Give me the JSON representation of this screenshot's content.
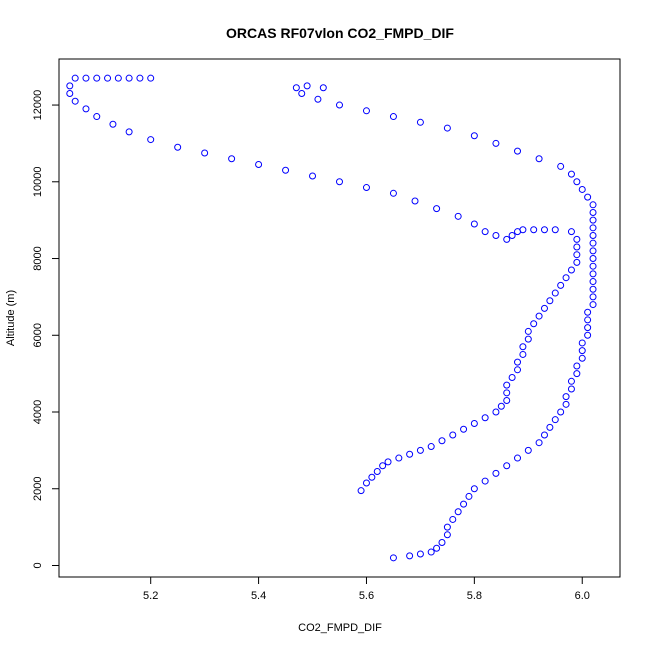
{
  "chart_data": {
    "type": "scatter",
    "title": "ORCAS RF07vlon CO2_FMPD_DIF",
    "xlabel": "CO2_FMPD_DIF",
    "ylabel": "Altitude (m)",
    "xlim": [
      5.03,
      6.07
    ],
    "ylim": [
      -300,
      13200
    ],
    "x_ticks": [
      5.2,
      5.4,
      5.6,
      5.8,
      6.0
    ],
    "x_tick_labels": [
      "5.2",
      "5.4",
      "5.6",
      "5.8",
      "6.0"
    ],
    "y_ticks": [
      0,
      2000,
      4000,
      6000,
      8000,
      10000,
      12000
    ],
    "y_tick_labels": [
      "0",
      "2000",
      "4000",
      "6000",
      "8000",
      "10000",
      "12000"
    ],
    "grid": false,
    "marker": "open-circle",
    "series_color": "#0000ff",
    "series": [
      {
        "name": "",
        "points": [
          [
            5.59,
            1950
          ],
          [
            5.6,
            2150
          ],
          [
            5.61,
            2300
          ],
          [
            5.62,
            2450
          ],
          [
            5.63,
            2600
          ],
          [
            5.64,
            2700
          ],
          [
            5.66,
            2800
          ],
          [
            5.68,
            2900
          ],
          [
            5.7,
            3000
          ],
          [
            5.72,
            3100
          ],
          [
            5.74,
            3250
          ],
          [
            5.76,
            3400
          ],
          [
            5.78,
            3550
          ],
          [
            5.8,
            3700
          ],
          [
            5.82,
            3850
          ],
          [
            5.84,
            4000
          ],
          [
            5.85,
            4150
          ],
          [
            5.86,
            4300
          ],
          [
            5.86,
            4500
          ],
          [
            5.86,
            4700
          ],
          [
            5.87,
            4900
          ],
          [
            5.88,
            5100
          ],
          [
            5.88,
            5300
          ],
          [
            5.89,
            5500
          ],
          [
            5.89,
            5700
          ],
          [
            5.9,
            5900
          ],
          [
            5.9,
            6100
          ],
          [
            5.91,
            6300
          ],
          [
            5.92,
            6500
          ],
          [
            5.93,
            6700
          ],
          [
            5.94,
            6900
          ],
          [
            5.95,
            7100
          ],
          [
            5.96,
            7300
          ],
          [
            5.97,
            7500
          ],
          [
            5.98,
            7700
          ],
          [
            5.99,
            7900
          ],
          [
            5.99,
            8100
          ],
          [
            5.99,
            8300
          ],
          [
            5.99,
            8500
          ],
          [
            5.98,
            8700
          ],
          [
            5.95,
            8750
          ],
          [
            5.93,
            8750
          ],
          [
            5.91,
            8750
          ],
          [
            5.89,
            8750
          ],
          [
            5.88,
            8700
          ],
          [
            5.87,
            8600
          ],
          [
            5.86,
            8500
          ],
          [
            5.84,
            8600
          ],
          [
            5.82,
            8700
          ],
          [
            5.8,
            8900
          ],
          [
            5.77,
            9100
          ],
          [
            5.73,
            9300
          ],
          [
            5.69,
            9500
          ],
          [
            5.65,
            9700
          ],
          [
            5.6,
            9850
          ],
          [
            5.55,
            10000
          ],
          [
            5.5,
            10150
          ],
          [
            5.45,
            10300
          ],
          [
            5.4,
            10450
          ],
          [
            5.35,
            10600
          ],
          [
            5.3,
            10750
          ],
          [
            5.25,
            10900
          ],
          [
            5.2,
            11100
          ],
          [
            5.16,
            11300
          ],
          [
            5.13,
            11500
          ],
          [
            5.1,
            11700
          ],
          [
            5.08,
            11900
          ],
          [
            5.06,
            12100
          ],
          [
            5.05,
            12300
          ],
          [
            5.05,
            12500
          ],
          [
            5.06,
            12700
          ],
          [
            5.08,
            12700
          ],
          [
            5.1,
            12700
          ],
          [
            5.12,
            12700
          ],
          [
            5.14,
            12700
          ],
          [
            5.16,
            12700
          ],
          [
            5.18,
            12700
          ],
          [
            5.2,
            12700
          ]
        ]
      },
      {
        "name": "",
        "points": [
          [
            5.65,
            200
          ],
          [
            5.68,
            250
          ],
          [
            5.7,
            300
          ],
          [
            5.72,
            350
          ],
          [
            5.73,
            450
          ],
          [
            5.74,
            600
          ],
          [
            5.75,
            800
          ],
          [
            5.75,
            1000
          ],
          [
            5.76,
            1200
          ],
          [
            5.77,
            1400
          ],
          [
            5.78,
            1600
          ],
          [
            5.79,
            1800
          ],
          [
            5.8,
            2000
          ],
          [
            5.82,
            2200
          ],
          [
            5.84,
            2400
          ],
          [
            5.86,
            2600
          ],
          [
            5.88,
            2800
          ],
          [
            5.9,
            3000
          ],
          [
            5.92,
            3200
          ],
          [
            5.93,
            3400
          ],
          [
            5.94,
            3600
          ],
          [
            5.95,
            3800
          ],
          [
            5.96,
            4000
          ],
          [
            5.97,
            4200
          ],
          [
            5.97,
            4400
          ],
          [
            5.98,
            4600
          ],
          [
            5.98,
            4800
          ],
          [
            5.99,
            5000
          ],
          [
            5.99,
            5200
          ],
          [
            6.0,
            5400
          ],
          [
            6.0,
            5600
          ],
          [
            6.0,
            5800
          ],
          [
            6.01,
            6000
          ],
          [
            6.01,
            6200
          ],
          [
            6.01,
            6400
          ],
          [
            6.01,
            6600
          ],
          [
            6.02,
            6800
          ],
          [
            6.02,
            7000
          ],
          [
            6.02,
            7200
          ],
          [
            6.02,
            7400
          ],
          [
            6.02,
            7600
          ],
          [
            6.02,
            7800
          ],
          [
            6.02,
            8000
          ],
          [
            6.02,
            8200
          ],
          [
            6.02,
            8400
          ],
          [
            6.02,
            8600
          ],
          [
            6.02,
            8800
          ],
          [
            6.02,
            9000
          ],
          [
            6.02,
            9200
          ],
          [
            6.02,
            9400
          ],
          [
            6.01,
            9600
          ],
          [
            6.0,
            9800
          ],
          [
            5.99,
            10000
          ],
          [
            5.98,
            10200
          ],
          [
            5.96,
            10400
          ],
          [
            5.92,
            10600
          ],
          [
            5.88,
            10800
          ],
          [
            5.84,
            11000
          ],
          [
            5.8,
            11200
          ],
          [
            5.75,
            11400
          ],
          [
            5.7,
            11550
          ],
          [
            5.65,
            11700
          ],
          [
            5.6,
            11850
          ],
          [
            5.55,
            12000
          ],
          [
            5.51,
            12150
          ],
          [
            5.48,
            12300
          ],
          [
            5.47,
            12450
          ],
          [
            5.49,
            12500
          ],
          [
            5.52,
            12450
          ]
        ]
      }
    ]
  }
}
